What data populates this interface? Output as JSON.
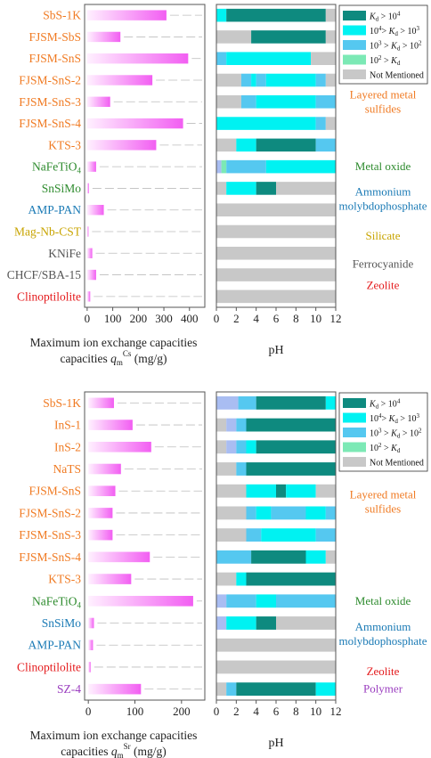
{
  "colors": {
    "Kd_gt_1e4": "#0e8a7f",
    "Kd_1e3_1e4": "#00f2f2",
    "Kd_1e2_1e3": "#55c8f0",
    "Kd_1e2": "#7ce9b5",
    "not_mentioned": "#c8c8c8",
    "bar_start": "#fff0ff",
    "bar_end": "#f25ef2",
    "group_sulfide": "#f07a22",
    "group_oxide": "#2e8b2e",
    "group_ammonium": "#1a7ab5",
    "group_silicate": "#c8a400",
    "group_ferrocyanide": "#555555",
    "group_zeolite": "#e41a1c",
    "group_polymer": "#9a3dbf"
  },
  "chart_data": [
    {
      "type": "bar",
      "orientation": "horizontal",
      "ion": "Cs",
      "categories": [
        "SbS-1K",
        "FJSM-SbS",
        "FJSM-SnS",
        "FJSM-SnS-2",
        "FJSM-SnS-3",
        "FJSM-SnS-4",
        "KTS-3",
        "NaFeTiO4",
        "SnSiMo",
        "AMP-PAN",
        "Mag-Nb-CST",
        "KNiFe",
        "CHCF/SBA-15",
        "Clinoptilolite"
      ],
      "label_groups": [
        "sulfide",
        "sulfide",
        "sulfide",
        "sulfide",
        "sulfide",
        "sulfide",
        "sulfide",
        "oxide",
        "oxide",
        "ammonium",
        "silicate",
        "ferrocyanide",
        "ferrocyanide",
        "zeolite"
      ],
      "values": [
        310,
        130,
        395,
        255,
        90,
        375,
        270,
        35,
        7,
        65,
        5,
        20,
        35,
        12
      ],
      "xlim": [
        -10,
        460
      ],
      "xticks": [
        0,
        100,
        200,
        300,
        400
      ],
      "xlabel": "Maximum ion exchange capacities",
      "xlabel_symbol": "q",
      "xlabel_sub": "m",
      "xlabel_sup": "Cs",
      "xlabel_unit": " (mg/g)"
    },
    {
      "type": "bar",
      "orientation": "horizontal",
      "stacked": true,
      "ion": "Cs",
      "categories": [
        "SbS-1K",
        "FJSM-SbS",
        "FJSM-SnS",
        "FJSM-SnS-2",
        "FJSM-SnS-3",
        "FJSM-SnS-4",
        "KTS-3",
        "NaFeTiO4",
        "SnSiMo",
        "AMP-PAN",
        "Mag-Nb-CST",
        "KNiFe",
        "CHCF/SBA-15",
        "Clinoptilolite"
      ],
      "segments": [
        [
          [
            0,
            1,
            "c"
          ],
          [
            1,
            11,
            "t"
          ],
          [
            11,
            12,
            "n"
          ]
        ],
        [
          [
            0,
            3.5,
            "n"
          ],
          [
            3.5,
            11,
            "t"
          ],
          [
            11,
            12,
            "n"
          ]
        ],
        [
          [
            0,
            1,
            "b"
          ],
          [
            1,
            9.5,
            "c"
          ],
          [
            9.5,
            12,
            "n"
          ]
        ],
        [
          [
            0,
            2.5,
            "n"
          ],
          [
            2.5,
            3.5,
            "b"
          ],
          [
            3.5,
            4,
            "c"
          ],
          [
            4,
            5,
            "b"
          ],
          [
            5,
            10,
            "c"
          ],
          [
            10,
            11,
            "b"
          ],
          [
            11,
            12,
            "n"
          ]
        ],
        [
          [
            0,
            2.5,
            "n"
          ],
          [
            2.5,
            4,
            "b"
          ],
          [
            4,
            10,
            "c"
          ],
          [
            10,
            12,
            "b"
          ]
        ],
        [
          [
            0,
            10,
            "c"
          ],
          [
            10,
            11,
            "b"
          ],
          [
            11,
            12,
            "n"
          ]
        ],
        [
          [
            0,
            2,
            "n"
          ],
          [
            2,
            4,
            "c"
          ],
          [
            4,
            10,
            "t"
          ],
          [
            10,
            12,
            "b"
          ]
        ],
        [
          [
            0,
            0.5,
            "m"
          ],
          [
            0.5,
            1,
            "g"
          ],
          [
            1,
            5,
            "b"
          ],
          [
            5,
            12,
            "c"
          ]
        ],
        [
          [
            0,
            1,
            "n"
          ],
          [
            1,
            4,
            "c"
          ],
          [
            4,
            6,
            "t"
          ],
          [
            6,
            12,
            "n"
          ]
        ],
        [
          [
            0,
            12,
            "n"
          ]
        ],
        [
          [
            0,
            12,
            "n"
          ]
        ],
        [
          [
            0,
            12,
            "n"
          ]
        ],
        [
          [
            0,
            12,
            "n"
          ]
        ],
        [
          [
            0,
            12,
            "n"
          ]
        ]
      ],
      "xlim": [
        0,
        12
      ],
      "xticks": [
        0,
        2,
        4,
        6,
        8,
        10,
        12
      ],
      "xlabel": "pH",
      "legend": {
        "placement": "top-right",
        "entries": [
          {
            "key": "t",
            "lhs": "K",
            "sub": "d",
            "rel": " > 10",
            "sup": "4"
          },
          {
            "key": "c",
            "lhs": "10",
            "lsup": "4",
            "rel": "> ",
            "mid": "K",
            "msub": "d",
            "rel2": " > 10",
            "sup": "3"
          },
          {
            "key": "b",
            "lhs": "10",
            "lsup": "3",
            "rel": " > ",
            "mid": "K",
            "msub": "d",
            "rel2": " > 10",
            "sup": "2"
          },
          {
            "key": "g",
            "lhs": "10",
            "lsup": "2",
            "rel": " > ",
            "mid": "K",
            "msub": "d"
          },
          {
            "key": "n",
            "text": "Not Mentioned"
          }
        ]
      },
      "group_labels": [
        {
          "group": "sulfide",
          "lines": [
            "Layered metal",
            "sulfides"
          ],
          "row": 4.5
        },
        {
          "group": "oxide",
          "lines": [
            "Metal oxide"
          ],
          "row": 7.5
        },
        {
          "group": "ammonium",
          "lines": [
            "Ammonium",
            "molybdophosphate"
          ],
          "row": 9.0
        },
        {
          "group": "silicate",
          "lines": [
            "Silicate"
          ],
          "row": 10.7
        },
        {
          "group": "ferrocyanide",
          "lines": [
            "Ferrocyanide"
          ],
          "row": 12.0
        },
        {
          "group": "zeolite",
          "lines": [
            "Zeolite"
          ],
          "row": 13.0
        }
      ]
    },
    {
      "type": "bar",
      "orientation": "horizontal",
      "ion": "Sr",
      "categories": [
        "SbS-1K",
        "InS-1",
        "InS-2",
        "NaTS",
        "FJSM-SnS",
        "FJSM-SnS-2",
        "FJSM-SnS-3",
        "FJSM-SnS-4",
        "KTS-3",
        "NaFeTiO4",
        "SnSiMo",
        "AMP-PAN",
        "Clinoptilolite",
        "SZ-4"
      ],
      "label_groups": [
        "sulfide",
        "sulfide",
        "sulfide",
        "sulfide",
        "sulfide",
        "sulfide",
        "sulfide",
        "sulfide",
        "sulfide",
        "oxide",
        "ammonium",
        "ammonium",
        "zeolite",
        "polymer"
      ],
      "values": [
        55,
        95,
        135,
        70,
        58,
        52,
        52,
        132,
        92,
        225,
        12,
        10,
        5,
        113
      ],
      "xlim": [
        -8,
        250
      ],
      "xticks": [
        0,
        100,
        200
      ],
      "xlabel": "Maximum ion exchange capacities",
      "xlabel_symbol": "q",
      "xlabel_sub": "m",
      "xlabel_sup": "Sr",
      "xlabel_unit": " (mg/g)"
    },
    {
      "type": "bar",
      "orientation": "horizontal",
      "stacked": true,
      "ion": "Sr",
      "categories": [
        "SbS-1K",
        "InS-1",
        "InS-2",
        "NaTS",
        "FJSM-SnS",
        "FJSM-SnS-2",
        "FJSM-SnS-3",
        "FJSM-SnS-4",
        "KTS-3",
        "NaFeTiO4",
        "SnSiMo",
        "AMP-PAN",
        "Clinoptilolite",
        "SZ-4"
      ],
      "segments": [
        [
          [
            0,
            2.2,
            "m"
          ],
          [
            2.2,
            4,
            "b"
          ],
          [
            4,
            11,
            "t"
          ],
          [
            11,
            12,
            "c"
          ]
        ],
        [
          [
            0,
            1,
            "n"
          ],
          [
            1,
            2,
            "m"
          ],
          [
            2,
            3,
            "b"
          ],
          [
            3,
            12,
            "t"
          ]
        ],
        [
          [
            0,
            1,
            "n"
          ],
          [
            1,
            2,
            "m"
          ],
          [
            2,
            3,
            "b"
          ],
          [
            3,
            4,
            "c"
          ],
          [
            4,
            12,
            "t"
          ]
        ],
        [
          [
            0,
            2,
            "n"
          ],
          [
            2,
            3,
            "b"
          ],
          [
            3,
            12,
            "t"
          ]
        ],
        [
          [
            0,
            3,
            "n"
          ],
          [
            3,
            6,
            "c"
          ],
          [
            6,
            7,
            "t"
          ],
          [
            7,
            10,
            "c"
          ],
          [
            10,
            12,
            "n"
          ]
        ],
        [
          [
            0,
            3,
            "n"
          ],
          [
            3,
            4,
            "b"
          ],
          [
            4,
            5.5,
            "c"
          ],
          [
            5.5,
            9,
            "b"
          ],
          [
            9,
            11,
            "c"
          ],
          [
            11,
            12,
            "b"
          ]
        ],
        [
          [
            0,
            3,
            "n"
          ],
          [
            3,
            4.5,
            "b"
          ],
          [
            4.5,
            10,
            "c"
          ],
          [
            10,
            12,
            "b"
          ]
        ],
        [
          [
            0,
            3.5,
            "b"
          ],
          [
            3.5,
            9,
            "t"
          ],
          [
            9,
            11,
            "c"
          ],
          [
            11,
            12,
            "n"
          ]
        ],
        [
          [
            0,
            2,
            "n"
          ],
          [
            2,
            3,
            "c"
          ],
          [
            3,
            12,
            "t"
          ]
        ],
        [
          [
            0,
            1,
            "m"
          ],
          [
            1,
            4,
            "b"
          ],
          [
            4,
            6,
            "c"
          ],
          [
            6,
            12,
            "b"
          ]
        ],
        [
          [
            0,
            1,
            "m"
          ],
          [
            1,
            4,
            "c"
          ],
          [
            4,
            6,
            "t"
          ],
          [
            6,
            12,
            "n"
          ]
        ],
        [
          [
            0,
            12,
            "n"
          ]
        ],
        [
          [
            0,
            12,
            "n"
          ]
        ],
        [
          [
            0,
            1,
            "n"
          ],
          [
            1,
            2,
            "b"
          ],
          [
            2,
            10,
            "t"
          ],
          [
            10,
            12,
            "c"
          ]
        ]
      ],
      "xlim": [
        0,
        12
      ],
      "xticks": [
        0,
        2,
        4,
        6,
        8,
        10,
        12
      ],
      "xlabel": "pH",
      "legend": {
        "placement": "top-right",
        "entries": [
          {
            "key": "t",
            "lhs": "K",
            "sub": "d",
            "rel": " > 10",
            "sup": "4"
          },
          {
            "key": "c",
            "lhs": "10",
            "lsup": "4",
            "rel": "> ",
            "mid": "K",
            "msub": "d",
            "rel2": " > 10",
            "sup": "3"
          },
          {
            "key": "b",
            "lhs": "10",
            "lsup": "3",
            "rel": " > ",
            "mid": "K",
            "msub": "d",
            "rel2": " > 10",
            "sup": "2"
          },
          {
            "key": "g",
            "lhs": "10",
            "lsup": "2",
            "rel": " > ",
            "mid": "K",
            "msub": "d"
          },
          {
            "key": "n",
            "text": "Not Mentioned"
          }
        ]
      },
      "group_labels": [
        {
          "group": "sulfide",
          "lines": [
            "Layered metal",
            "sulfides"
          ],
          "row": 5.0
        },
        {
          "group": "oxide",
          "lines": [
            "Metal oxide"
          ],
          "row": 9.5
        },
        {
          "group": "ammonium",
          "lines": [
            "Ammonium",
            "molybdophosphate"
          ],
          "row": 11.0
        },
        {
          "group": "zeolite",
          "lines": [
            "Zeolite"
          ],
          "row": 12.7
        },
        {
          "group": "polymer",
          "lines": [
            "Polymer"
          ],
          "row": 13.5
        }
      ]
    }
  ]
}
